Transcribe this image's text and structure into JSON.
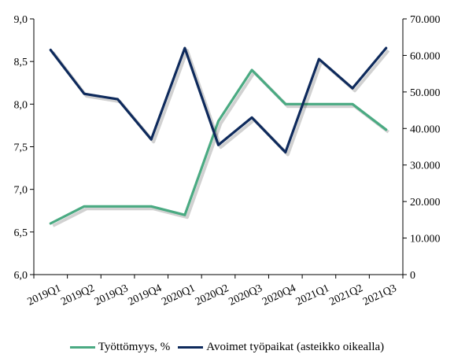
{
  "chart_data": {
    "type": "line",
    "categories": [
      "2019Q1",
      "2019Q2",
      "2019Q3",
      "2019Q4",
      "2020Q1",
      "2020Q2",
      "2020Q3",
      "2020Q4",
      "2021Q1",
      "2021Q2",
      "2021Q3"
    ],
    "series": [
      {
        "name": "Työttömyys, %",
        "axis": "left",
        "color": "#4aaa82",
        "values": [
          6.6,
          6.8,
          6.8,
          6.8,
          6.7,
          7.8,
          8.4,
          8.0,
          8.0,
          8.0,
          7.7
        ]
      },
      {
        "name": "Avoimet työpaikat (asteikko oikealla)",
        "axis": "right",
        "color": "#0e2a5c",
        "values": [
          61500,
          49500,
          48000,
          37000,
          62000,
          35500,
          43000,
          33500,
          59000,
          51000,
          62000
        ]
      }
    ],
    "y_left": {
      "ylim": [
        6.0,
        9.0
      ],
      "ticks": [
        6.0,
        6.5,
        7.0,
        7.5,
        8.0,
        8.5,
        9.0
      ],
      "tick_labels": [
        "6,0",
        "6,5",
        "7,0",
        "7,5",
        "8,0",
        "8,5",
        "9,0"
      ]
    },
    "y_right": {
      "ylim": [
        0,
        70000
      ],
      "ticks": [
        0,
        10000,
        20000,
        30000,
        40000,
        50000,
        60000,
        70000
      ],
      "tick_labels": [
        "0",
        "10.000",
        "20.000",
        "30.000",
        "40.000",
        "50.000",
        "60.000",
        "70.000"
      ]
    },
    "grid": false,
    "legend": "bottom"
  }
}
